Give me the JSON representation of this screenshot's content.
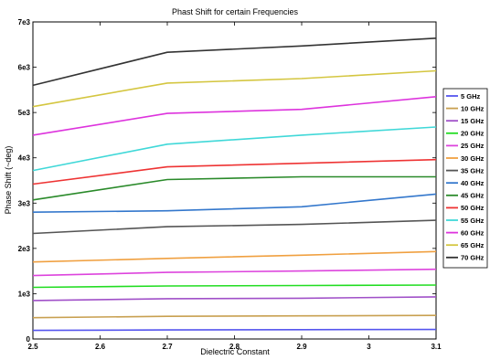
{
  "chart_data": {
    "type": "line",
    "title": "Phast Shift for certain Frequencies",
    "xlabel": "Dielectric Constant",
    "ylabel": "Phase Shift (~deg)",
    "xlim": [
      2.5,
      3.1
    ],
    "ylim": [
      0,
      7000
    ],
    "x_ticks": [
      2.5,
      2.6,
      2.7,
      2.8,
      2.9,
      3.0,
      3.1
    ],
    "x_tick_labels": [
      "2.5",
      "2.6",
      "2.7",
      "2.8",
      "2.9",
      "3",
      "3.1"
    ],
    "y_ticks": [
      0,
      1000,
      2000,
      3000,
      4000,
      5000,
      6000,
      7000
    ],
    "y_tick_labels": [
      "0",
      "1e3",
      "2e3",
      "3e3",
      "4e3",
      "5e3",
      "6e3",
      "7e3"
    ],
    "grid": false,
    "legend_position": "right-outside",
    "x": [
      2.5,
      2.7,
      2.9,
      3.1
    ],
    "series": [
      {
        "name": "5 GHz",
        "color": "#5555ee",
        "values": [
          190,
          200,
          205,
          210
        ]
      },
      {
        "name": "10 GHz",
        "color": "#c8a050",
        "values": [
          470,
          500,
          510,
          520
        ]
      },
      {
        "name": "15 GHz",
        "color": "#a050c8",
        "values": [
          850,
          890,
          900,
          930
        ]
      },
      {
        "name": "20 GHz",
        "color": "#22dd22",
        "values": [
          1140,
          1170,
          1180,
          1190
        ]
      },
      {
        "name": "25 GHz",
        "color": "#dd44dd",
        "values": [
          1400,
          1470,
          1500,
          1540
        ]
      },
      {
        "name": "30 GHz",
        "color": "#f0a040",
        "values": [
          1700,
          1780,
          1850,
          1930
        ]
      },
      {
        "name": "35 GHz",
        "color": "#555555",
        "values": [
          2330,
          2480,
          2530,
          2620
        ]
      },
      {
        "name": "40 GHz",
        "color": "#3377cc",
        "values": [
          2800,
          2830,
          2920,
          3200
        ]
      },
      {
        "name": "45 GHz",
        "color": "#2a8a2a",
        "values": [
          3070,
          3520,
          3580,
          3580
        ]
      },
      {
        "name": "50 GHz",
        "color": "#ee3333",
        "values": [
          3420,
          3800,
          3880,
          3960
        ]
      },
      {
        "name": "55 GHz",
        "color": "#40d8d8",
        "values": [
          3720,
          4300,
          4500,
          4680
        ]
      },
      {
        "name": "60 GHz",
        "color": "#dd33dd",
        "values": [
          4500,
          4980,
          5070,
          5350
        ]
      },
      {
        "name": "65 GHz",
        "color": "#d4c640",
        "values": [
          5130,
          5650,
          5750,
          5920
        ]
      },
      {
        "name": "70 GHz",
        "color": "#333333",
        "values": [
          5600,
          6330,
          6470,
          6640
        ]
      }
    ]
  }
}
